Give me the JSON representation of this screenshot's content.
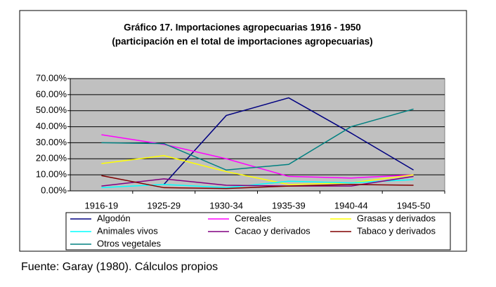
{
  "chart_data": {
    "type": "line",
    "title": "Gráfico 17.  Importaciones agropecuarias 1916 - 1950",
    "subtitle": "(participación en el total de importaciones agropecuarias)",
    "categories": [
      "1916-19",
      "1925-29",
      "1930-34",
      "1935-39",
      "1940-44",
      "1945-50"
    ],
    "ylim": [
      0,
      70
    ],
    "yticks": [
      {
        "value": 0,
        "label": "0.00%"
      },
      {
        "value": 10,
        "label": "10.00%"
      },
      {
        "value": 20,
        "label": "20.00%"
      },
      {
        "value": 30,
        "label": "30.00%"
      },
      {
        "value": 40,
        "label": "40.00%"
      },
      {
        "value": 50,
        "label": "50.00%"
      },
      {
        "value": 60,
        "label": "60.00%"
      },
      {
        "value": 70,
        "label": "70.00%"
      }
    ],
    "grid": true,
    "series": [
      {
        "name": "Algodón",
        "color": "#000080",
        "values": [
          null,
          4,
          47,
          58,
          36,
          13
        ]
      },
      {
        "name": "Cereales",
        "color": "#ff00ff",
        "values": [
          35,
          29,
          20,
          9,
          8,
          10
        ]
      },
      {
        "name": "Grasas y derivados",
        "color": "#ffff00",
        "values": [
          17,
          22,
          12,
          4,
          5,
          10
        ]
      },
      {
        "name": "Animales vivos",
        "color": "#00ffff",
        "values": [
          2,
          4,
          2,
          6,
          5,
          7
        ]
      },
      {
        "name": "Cacao y derivados",
        "color": "#800080",
        "values": [
          3,
          7.5,
          3.5,
          3,
          3,
          9
        ]
      },
      {
        "name": "Tabaco y derivados",
        "color": "#800000",
        "values": [
          9.5,
          2,
          1.5,
          3,
          4,
          3.5
        ]
      },
      {
        "name": "Otros vegetales",
        "color": "#008080",
        "values": [
          30,
          29.5,
          13,
          16.5,
          40,
          51
        ]
      }
    ]
  },
  "footer": "Fuente: Garay (1980). Cálculos propios"
}
